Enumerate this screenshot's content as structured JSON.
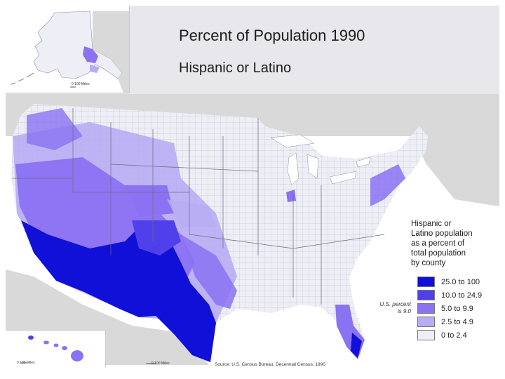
{
  "title": "Percent of Population 1990",
  "subtitle": "Hispanic or Latino",
  "legend": {
    "heading_lines": [
      "Hispanic or",
      "Latino population",
      "as a percent of",
      "total population",
      "by county"
    ],
    "classes": [
      {
        "label": "25.0 to 100",
        "color": "#1010d8"
      },
      {
        "label": "10.0 to 24.9",
        "color": "#4f40ec"
      },
      {
        "label": "5.0 to 9.9",
        "color": "#8a72f2"
      },
      {
        "label": "2.5 to 4.9",
        "color": "#b8acf4"
      },
      {
        "label": "0 to 2.4",
        "color": "#eeeef6"
      }
    ]
  },
  "us_percent": {
    "line1": "U.S. percent",
    "line2": "is 9.0"
  },
  "source": "Source:  U.S. Census Bureau, Decennial Census, 1990",
  "scale_labels": {
    "alaska": "0   100 Miles",
    "hawaii": "0      100 Miles",
    "mainland": "0       100 Miles"
  },
  "colors": {
    "land_other": "#d9d9d9",
    "water": "#ffffff",
    "header_band": "#e7e7ec",
    "county_lines": "#8f8fa0"
  }
}
